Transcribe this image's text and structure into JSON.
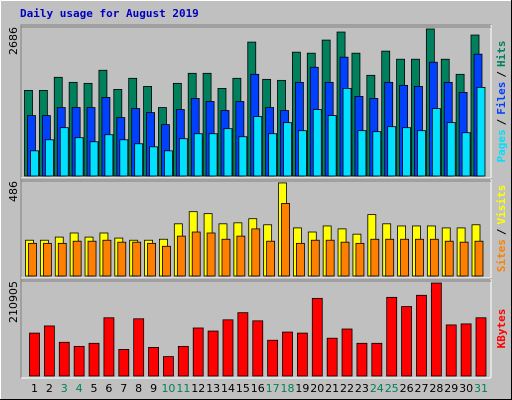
{
  "chart_data": [
    {
      "type": "bar",
      "title": "Daily usage for August 2019",
      "ylim": [
        0,
        2686
      ],
      "yticks": [
        2686
      ],
      "legend_separator": "/",
      "series": [
        {
          "name": "Hits",
          "color": "#00805c",
          "values": [
            1543,
            1543,
            1779,
            1688,
            1670,
            1906,
            1561,
            1761,
            1615,
            1234,
            1670,
            1851,
            1851,
            1579,
            1761,
            2414,
            1742,
            1724,
            2232,
            2214,
            2450,
            2595,
            2214,
            1815,
            2251,
            2105,
            2105,
            2650,
            2105,
            1833,
            2541
          ]
        },
        {
          "name": "Files",
          "color": "#0040ff",
          "values": [
            1089,
            1089,
            1234,
            1234,
            1234,
            1416,
            1053,
            1216,
            1143,
            926,
            1198,
            1398,
            1343,
            1180,
            1343,
            1833,
            1234,
            1180,
            1688,
            1960,
            1688,
            2142,
            1434,
            1398,
            1688,
            1634,
            1615,
            2051,
            1688,
            1506,
            2196
          ]
        },
        {
          "name": "Pages",
          "color": "#00e0ff",
          "values": [
            454,
            653,
            871,
            690,
            617,
            744,
            653,
            581,
            526,
            454,
            672,
            762,
            762,
            853,
            708,
            1071,
            762,
            962,
            817,
            1198,
            1089,
            1579,
            817,
            799,
            889,
            871,
            817,
            1216,
            962,
            780,
            1597
          ]
        }
      ]
    },
    {
      "type": "bar",
      "ylim": [
        0,
        486
      ],
      "yticks": [
        486
      ],
      "legend_separator": "/",
      "series": [
        {
          "name": "Visits",
          "color": "#ffff00",
          "values": [
            183,
            183,
            199,
            220,
            199,
            220,
            194,
            183,
            183,
            188,
            267,
            329,
            319,
            267,
            272,
            293,
            262,
            476,
            246,
            225,
            256,
            241,
            214,
            314,
            267,
            256,
            256,
            256,
            246,
            246,
            262
          ]
        },
        {
          "name": "Sites",
          "color": "#ff8000",
          "values": [
            167,
            167,
            167,
            178,
            178,
            183,
            173,
            173,
            167,
            152,
            204,
            225,
            220,
            188,
            204,
            241,
            178,
            371,
            167,
            183,
            183,
            173,
            167,
            188,
            188,
            188,
            188,
            188,
            178,
            173,
            178
          ]
        }
      ]
    },
    {
      "type": "bar",
      "ylim": [
        0,
        210905
      ],
      "yticks": [
        210905
      ],
      "categories": [
        "1",
        "2",
        "3",
        "4",
        "5",
        "6",
        "7",
        "8",
        "9",
        "10",
        "11",
        "12",
        "13",
        "14",
        "15",
        "16",
        "17",
        "18",
        "19",
        "20",
        "21",
        "22",
        "23",
        "24",
        "25",
        "26",
        "27",
        "28",
        "29",
        "30",
        "31"
      ],
      "category_colors": [
        "#000000",
        "#000000",
        "#00805c",
        "#00805c",
        "#000000",
        "#000000",
        "#000000",
        "#000000",
        "#000000",
        "#00805c",
        "#00805c",
        "#000000",
        "#000000",
        "#000000",
        "#000000",
        "#000000",
        "#00805c",
        "#00805c",
        "#000000",
        "#000000",
        "#000000",
        "#000000",
        "#000000",
        "#00805c",
        "#00805c",
        "#000000",
        "#000000",
        "#000000",
        "#000000",
        "#000000",
        "#00805c"
      ],
      "series": [
        {
          "name": "KBytes",
          "color": "#ff0000",
          "values": [
            95256,
            111132,
            74844,
            65772,
            72576,
            129276,
            58968,
            127008,
            63504,
            43092,
            65772,
            106596,
            99792,
            124740,
            140616,
            122472,
            79380,
            97524,
            95256,
            172368,
            83916,
            104328,
            72576,
            72576,
            174636,
            154224,
            179172,
            206388,
            113400,
            115668,
            129276
          ]
        }
      ]
    }
  ]
}
